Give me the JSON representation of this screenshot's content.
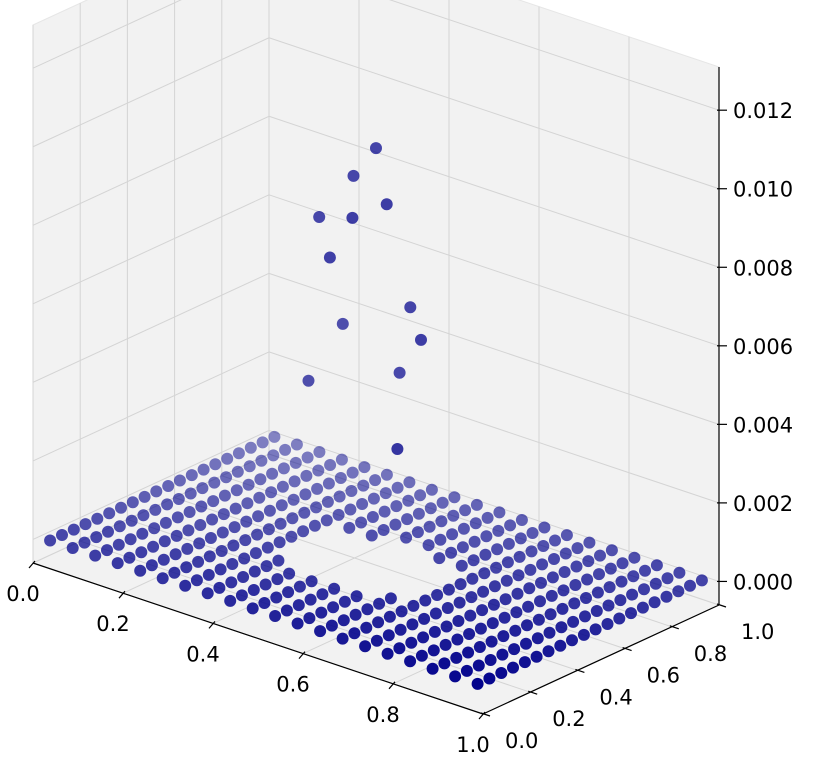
{
  "chart_data": {
    "type": "scatter",
    "projection": "3d",
    "title": "",
    "xlabel": "",
    "ylabel": "",
    "zlabel": "",
    "xlim": [
      0.0,
      1.0
    ],
    "ylim": [
      0.0,
      1.0
    ],
    "zlim": [
      -0.0006,
      0.0131
    ],
    "grid": true,
    "legend": "none",
    "marker_color": "#00008b",
    "pane_color": "#f2f2f2",
    "grid_color": "#d4d4d4",
    "x_ticks": [
      "0.0",
      "0.2",
      "0.4",
      "0.6",
      "0.8",
      "1.0"
    ],
    "y_ticks": [
      "0.0",
      "0.2",
      "0.4",
      "0.6",
      "0.8",
      "1.0"
    ],
    "z_ticks": [
      "0.000",
      "0.002",
      "0.004",
      "0.006",
      "0.008",
      "0.010",
      "0.012"
    ],
    "x_tick_values": [
      0.0,
      0.2,
      0.4,
      0.6,
      0.8,
      1.0
    ],
    "y_tick_values": [
      0.0,
      0.2,
      0.4,
      0.6,
      0.8,
      1.0
    ],
    "z_tick_values": [
      0.0,
      0.002,
      0.004,
      0.006,
      0.008,
      0.01,
      0.012
    ],
    "grid_n": 20,
    "points_note": "20 x 20 grid of x, y in [0, 1]; z = 0 except a central ring-shaped region with values up to ~0.0105",
    "peak_points": [
      {
        "x": 0.5,
        "y": 0.5,
        "z": 0.0105
      },
      {
        "x": 0.45,
        "y": 0.5,
        "z": 0.0096
      },
      {
        "x": 0.55,
        "y": 0.45,
        "z": 0.0094
      },
      {
        "x": 0.5,
        "y": 0.4,
        "z": 0.009
      },
      {
        "x": 0.4,
        "y": 0.45,
        "z": 0.0085
      },
      {
        "x": 0.45,
        "y": 0.4,
        "z": 0.0078
      },
      {
        "x": 0.55,
        "y": 0.55,
        "z": 0.0065
      },
      {
        "x": 0.6,
        "y": 0.5,
        "z": 0.006
      },
      {
        "x": 0.4,
        "y": 0.55,
        "z": 0.0055
      },
      {
        "x": 0.5,
        "y": 0.6,
        "z": 0.0045
      },
      {
        "x": 0.35,
        "y": 0.5,
        "z": 0.004
      },
      {
        "x": 0.6,
        "y": 0.4,
        "z": 0.0035
      }
    ]
  }
}
